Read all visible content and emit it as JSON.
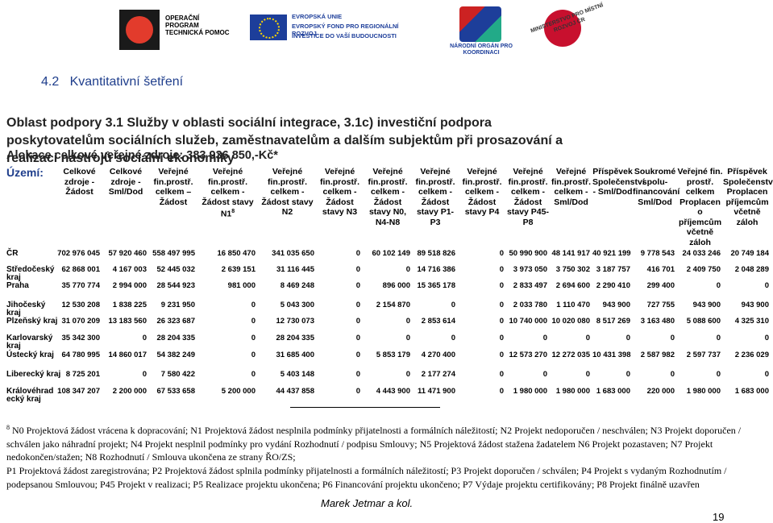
{
  "logos": {
    "optp": "OPERAČNÍ PROGRAM TECHNICKÁ POMOC",
    "eu": "EVROPSKÁ UNIE",
    "erdf": "EVROPSKÝ FOND PRO REGIONÁLNÍ ROZVOJ",
    "motto": "INVESTICE DO VAŠÍ BUDOUCNOSTI",
    "nok": "NÁRODNÍ ORGÁN PRO KOORDINACI",
    "mmr": "MINISTERSTVO PRO MÍSTNÍ ROZVOJ ČR"
  },
  "heading": {
    "number": "4.2",
    "title": "Kvantitativní šetření"
  },
  "area_title": "Oblast podpory 3.1 Služby v oblasti sociální integrace, 3.1c) investiční podpora poskytovatelům sociálních služeb, zaměstnavatelům a dalším subjektům při prosazování a realizaci nástrojů sociální ekonomiky",
  "allocation": "Alokace celkové veřejné zdroje: 383 936 850,-Kč*",
  "table": {
    "corner": "Území:",
    "columns": [
      "Celkové zdroje - Žádost",
      "Celkové zdroje - Sml/Dod",
      "Veřejné fin.prostř. celkem – Žádost",
      "Veřejné fin.prostř. celkem - Žádost stavy N1",
      "Veřejné fin.prostř. celkem - Žádost stavy N2",
      "Veřejné fin.prostř. celkem - Žádost stavy N3",
      "Veřejné fin.prostř. celkem - Žádost stavy N0, N4-N8",
      "Veřejné fin.prostř. celkem - Žádost stavy P1-P3",
      "Veřejné fin.prostř. celkem - Žádost stavy P4",
      "Veřejné fin.prostř. celkem - Žádost stavy P45-P8",
      "Veřejné fin.prostř. celkem - Sml/Dod",
      "Příspěvek Společenství - Sml/Dod",
      "Soukromé spolu-financování Sml/Dod",
      "Veřejné fin. prostř. celkem Proplacen o příjemcům včetně záloh",
      "Příspěvek Společenství Proplacen příjemcům včetně záloh"
    ],
    "column_note": "8",
    "rows": [
      [
        "ČR",
        "702 976 045",
        "57 920 460",
        "558 497 995",
        "16 850 470",
        "341 035 650",
        "0",
        "60 102 149",
        "89 518 826",
        "0",
        "50 990 900",
        "48 141 917",
        "40 921 199",
        "9 778 543",
        "24 033 246",
        "20 749 184"
      ],
      [
        "Středočeský kraj",
        "62 868 001",
        "4 167 003",
        "52 445 032",
        "2 639 151",
        "31 116 445",
        "0",
        "0",
        "14 716 386",
        "0",
        "3 973 050",
        "3 750 302",
        "3 187 757",
        "416 701",
        "2 409 750",
        "2 048 289"
      ],
      [
        "Praha",
        "35 770 774",
        "2 994 000",
        "28 544 923",
        "981 000",
        "8 469 248",
        "0",
        "896 000",
        "15 365 178",
        "0",
        "2 833 497",
        "2 694 600",
        "2 290 410",
        "299 400",
        "0",
        "0"
      ],
      [
        "Jihočeský kraj",
        "12 530 208",
        "1 838 225",
        "9 231 950",
        "0",
        "5 043 300",
        "0",
        "2 154 870",
        "0",
        "0",
        "2 033 780",
        "1 110 470",
        "943 900",
        "727 755",
        "943 900",
        "943 900"
      ],
      [
        "Plzeňský kraj",
        "31 070 209",
        "13 183 560",
        "26 323 687",
        "0",
        "12 730 073",
        "0",
        "0",
        "2 853 614",
        "0",
        "10 740 000",
        "10 020 080",
        "8 517 269",
        "3 163 480",
        "5 088 600",
        "4 325 310"
      ],
      [
        "Karlovarský kraj",
        "35 342 300",
        "0",
        "28 204 335",
        "0",
        "28 204 335",
        "0",
        "0",
        "0",
        "0",
        "0",
        "0",
        "0",
        "0",
        "0",
        "0"
      ],
      [
        "Ústecký kraj",
        "64 780 995",
        "14 860 017",
        "54 382 249",
        "0",
        "31 685 400",
        "0",
        "5 853 179",
        "4 270 400",
        "0",
        "12 573 270",
        "12 272 035",
        "10 431 398",
        "2 587 982",
        "2 597 737",
        "2 236 029"
      ],
      [
        "Liberecký kraj",
        "8 725 201",
        "0",
        "7 580 422",
        "0",
        "5 403 148",
        "0",
        "0",
        "2 177 274",
        "0",
        "0",
        "0",
        "0",
        "0",
        "0",
        "0"
      ],
      [
        "Královéhrad ecký kraj",
        "108 347 207",
        "2 200 000",
        "67 533 658",
        "5 200 000",
        "44 437 858",
        "0",
        "4 443 900",
        "11 471 900",
        "0",
        "1 980 000",
        "1 980 000",
        "1 683 000",
        "220 000",
        "1 980 000",
        "1 683 000"
      ]
    ]
  },
  "footnote": {
    "mark": "8",
    "n_states": "N0 Projektová žádost vrácena k dopracování; N1 Projektová žádost nesplnila podmínky přijatelnosti a formálních náležitostí; N2 Projekt nedoporučen / neschválen; N3 Projekt doporučen / schválen jako náhradní projekt; N4 Projekt nesplnil podmínky pro vydání Rozhodnutí / podpisu Smlouvy; N5 Projektová žádost stažena žadatelem N6 Projekt pozastaven; N7 Projekt nedokončen/stažen; N8 Rozhodnutí / Smlouva ukončena ze strany ŘO/ZS;",
    "p_states": "P1 Projektová žádost zaregistrována; P2 Projektová žádost splnila podmínky přijatelnosti a formálních náležitostí; P3 Projekt doporučen / schválen; P4 Projekt s vydaným Rozhodnutím / podepsanou Smlouvou; P45 Projekt v realizaci; P5 Realizace projektu ukončena; P6 Financování projektu ukončeno; P7 Výdaje projektu certifikovány; P8 Projekt finálně uzavřen"
  },
  "author": "Marek Jetmar a kol.",
  "page_number": "19"
}
